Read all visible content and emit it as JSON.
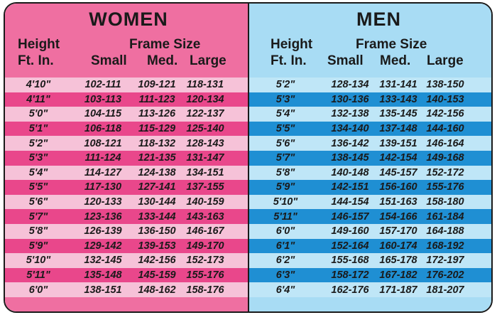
{
  "women": {
    "title": "WOMEN",
    "height_label": "Height",
    "units_label": "Ft. In.",
    "frame_label": "Frame Size",
    "small_label": "Small",
    "med_label": "Med.",
    "large_label": "Large",
    "rows": [
      {
        "height": "4'10\"",
        "small": "102-111",
        "med": "109-121",
        "large": "118-131"
      },
      {
        "height": "4'11\"",
        "small": "103-113",
        "med": "111-123",
        "large": "120-134"
      },
      {
        "height": "5'0\"",
        "small": "104-115",
        "med": "113-126",
        "large": "122-137"
      },
      {
        "height": "5'1\"",
        "small": "106-118",
        "med": "115-129",
        "large": "125-140"
      },
      {
        "height": "5'2\"",
        "small": "108-121",
        "med": "118-132",
        "large": "128-143"
      },
      {
        "height": "5'3\"",
        "small": "111-124",
        "med": "121-135",
        "large": "131-147"
      },
      {
        "height": "5'4\"",
        "small": "114-127",
        "med": "124-138",
        "large": "134-151"
      },
      {
        "height": "5'5\"",
        "small": "117-130",
        "med": "127-141",
        "large": "137-155"
      },
      {
        "height": "5'6\"",
        "small": "120-133",
        "med": "130-144",
        "large": "140-159"
      },
      {
        "height": "5'7\"",
        "small": "123-136",
        "med": "133-144",
        "large": "143-163"
      },
      {
        "height": "5'8\"",
        "small": "126-139",
        "med": "136-150",
        "large": "146-167"
      },
      {
        "height": "5'9\"",
        "small": "129-142",
        "med": "139-153",
        "large": "149-170"
      },
      {
        "height": "5'10\"",
        "small": "132-145",
        "med": "142-156",
        "large": "152-173"
      },
      {
        "height": "5'11\"",
        "small": "135-148",
        "med": "145-159",
        "large": "155-176"
      },
      {
        "height": "6'0\"",
        "small": "138-151",
        "med": "148-162",
        "large": "158-176"
      }
    ]
  },
  "men": {
    "title": "MEN",
    "height_label": "Height",
    "units_label": "Ft. In.",
    "frame_label": "Frame Size",
    "small_label": "Small",
    "med_label": "Med.",
    "large_label": "Large",
    "rows": [
      {
        "height": "5'2\"",
        "small": "128-134",
        "med": "131-141",
        "large": "138-150"
      },
      {
        "height": "5'3\"",
        "small": "130-136",
        "med": "133-143",
        "large": "140-153"
      },
      {
        "height": "5'4\"",
        "small": "132-138",
        "med": "135-145",
        "large": "142-156"
      },
      {
        "height": "5'5\"",
        "small": "134-140",
        "med": "137-148",
        "large": "144-160"
      },
      {
        "height": "5'6\"",
        "small": "136-142",
        "med": "139-151",
        "large": "146-164"
      },
      {
        "height": "5'7\"",
        "small": "138-145",
        "med": "142-154",
        "large": "149-168"
      },
      {
        "height": "5'8\"",
        "small": "140-148",
        "med": "145-157",
        "large": "152-172"
      },
      {
        "height": "5'9\"",
        "small": "142-151",
        "med": "156-160",
        "large": "155-176"
      },
      {
        "height": "5'10\"",
        "small": "144-154",
        "med": "151-163",
        "large": "158-180"
      },
      {
        "height": "5'11\"",
        "small": "146-157",
        "med": "154-166",
        "large": "161-184"
      },
      {
        "height": "6'0\"",
        "small": "149-160",
        "med": "157-170",
        "large": "164-188"
      },
      {
        "height": "6'1\"",
        "small": "152-164",
        "med": "160-174",
        "large": "168-192"
      },
      {
        "height": "6'2\"",
        "small": "155-168",
        "med": "165-178",
        "large": "172-197"
      },
      {
        "height": "6'3\"",
        "small": "158-172",
        "med": "167-182",
        "large": "176-202"
      },
      {
        "height": "6'4\"",
        "small": "162-176",
        "med": "171-187",
        "large": "181-207"
      }
    ]
  },
  "colors": {
    "women_bg": "#ef6fa1",
    "women_row_light": "#f6c2d8",
    "women_row_dark": "#e9478b",
    "men_bg": "#a8dcf4",
    "men_row_light": "#bfe6f7",
    "men_row_dark": "#1f8fd3"
  }
}
